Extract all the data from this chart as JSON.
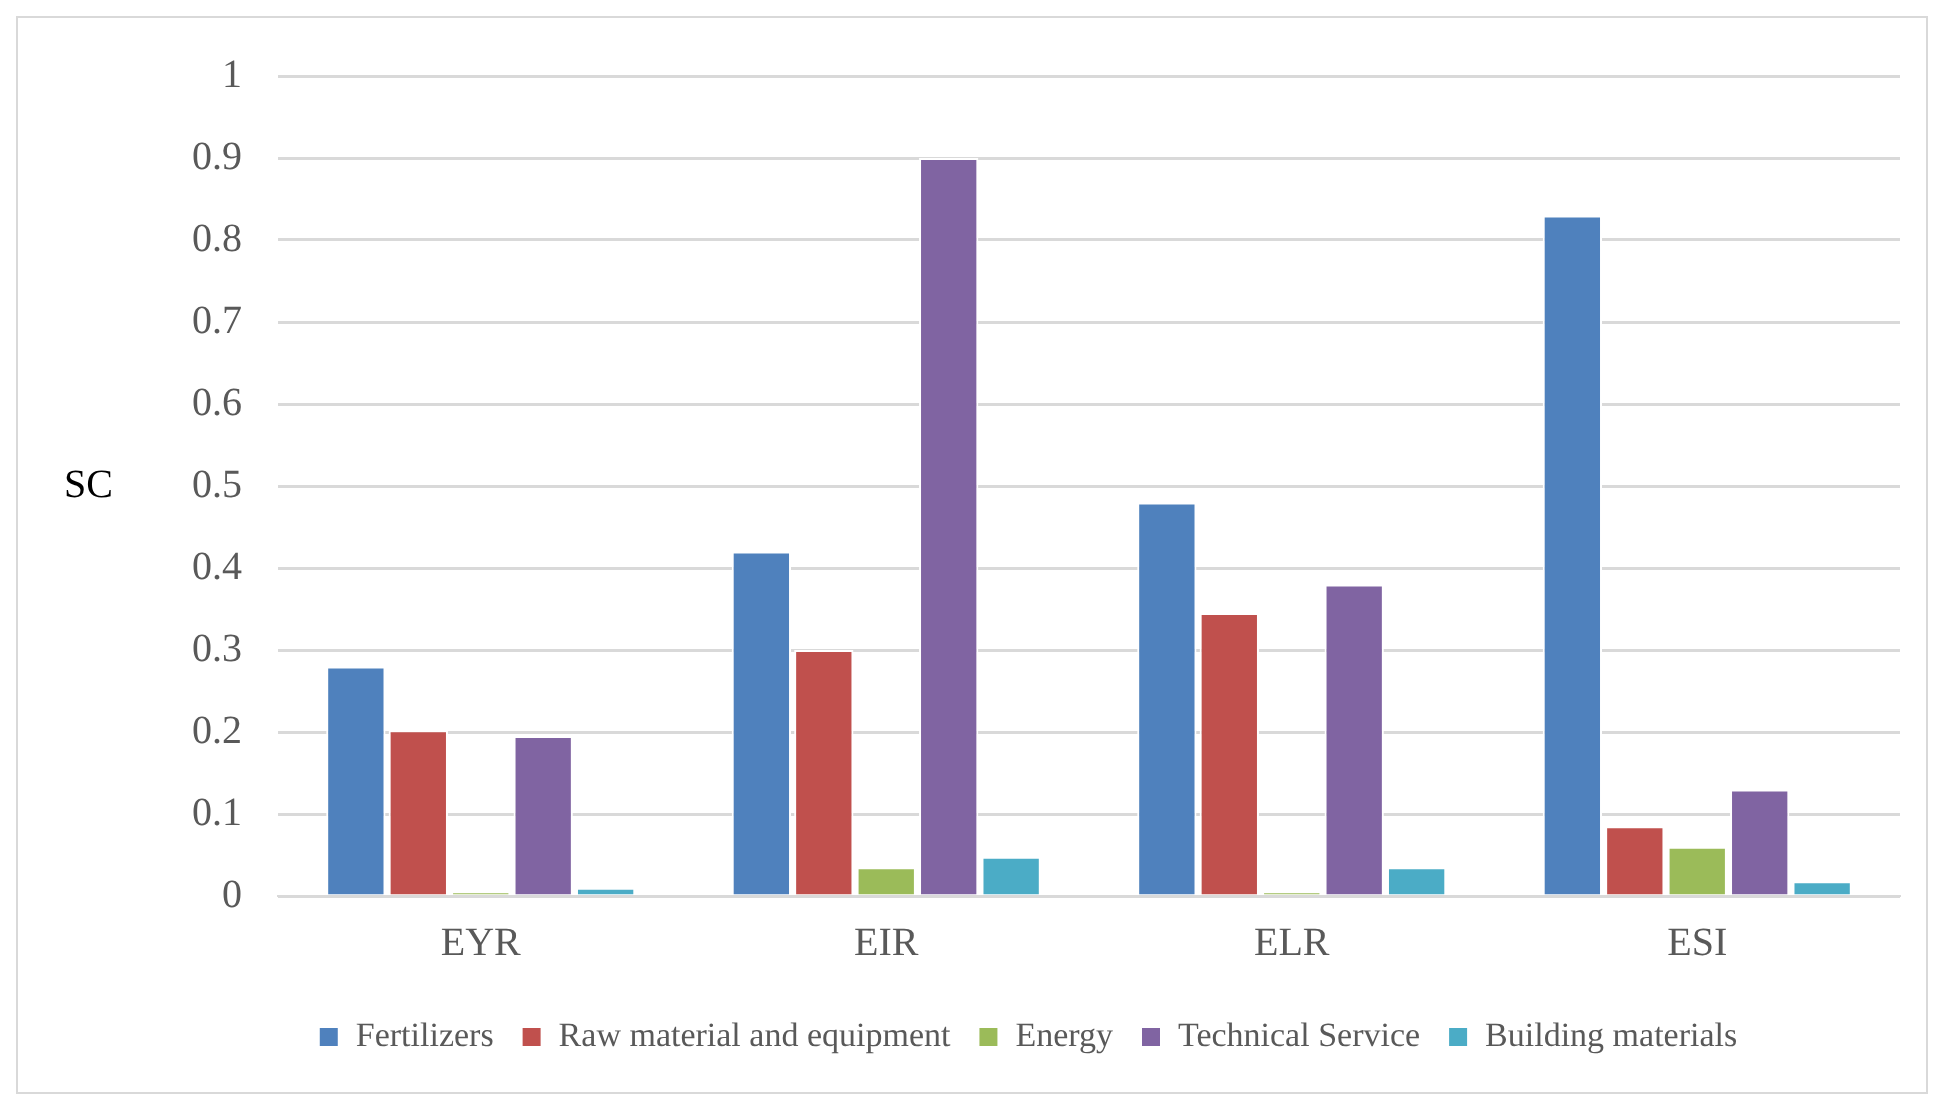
{
  "chart_data": {
    "type": "bar",
    "ylabel": "SC",
    "categories": [
      "EYR",
      "EIR",
      "ELR",
      "ESI"
    ],
    "series": [
      {
        "name": "Fertilizers",
        "color": "#4f81bd",
        "values": [
          0.28,
          0.42,
          0.48,
          0.83
        ]
      },
      {
        "name": "Raw material and equipment",
        "color": "#c0504d",
        "values": [
          0.202,
          0.3,
          0.345,
          0.085
        ]
      },
      {
        "name": "Energy",
        "color": "#9bbb59",
        "values": [
          0.005,
          0.035,
          0.005,
          0.06
        ]
      },
      {
        "name": "Technical Service",
        "color": "#8064a2",
        "values": [
          0.195,
          0.9,
          0.38,
          0.13
        ]
      },
      {
        "name": "Building materials",
        "color": "#4bacc6",
        "values": [
          0.01,
          0.048,
          0.035,
          0.018
        ]
      }
    ],
    "ylim": [
      0,
      1
    ],
    "yticks": [
      0,
      0.1,
      0.2,
      0.3,
      0.4,
      0.5,
      0.6,
      0.7,
      0.8,
      0.9,
      1
    ],
    "grid": "y",
    "legend": "bottom"
  }
}
